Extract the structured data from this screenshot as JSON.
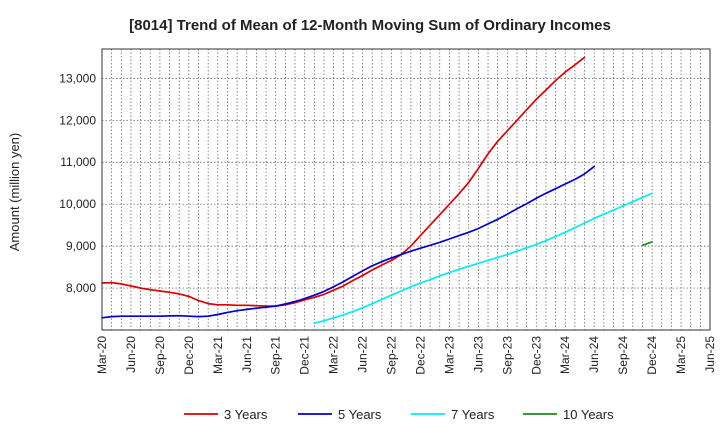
{
  "chart_data": {
    "type": "line",
    "title": "[8014]  Trend of Mean of 12-Month Moving Sum of Ordinary Incomes",
    "xlabel": "",
    "ylabel": "Amount (million yen)",
    "x_ticks": [
      "Mar-20",
      "Jun-20",
      "Sep-20",
      "Dec-20",
      "Mar-21",
      "Jun-21",
      "Sep-21",
      "Dec-21",
      "Mar-22",
      "Jun-22",
      "Sep-22",
      "Dec-22",
      "Mar-23",
      "Jun-23",
      "Sep-23",
      "Dec-23",
      "Mar-24",
      "Jun-24",
      "Sep-24",
      "Dec-24",
      "Mar-25",
      "Jun-25"
    ],
    "y_ticks": [
      8000,
      9000,
      10000,
      11000,
      12000,
      13000
    ],
    "y_tick_labels": [
      "8,000",
      "9,000",
      "10,000",
      "11,000",
      "12,000",
      "13,000"
    ],
    "ylim": [
      7000,
      13700
    ],
    "grid": true,
    "legend_position": "bottom",
    "series": [
      {
        "name": "3 Years",
        "color": "#dd0000",
        "start_index": 0,
        "values": [
          8120,
          8130,
          8100,
          8050,
          8000,
          7960,
          7930,
          7900,
          7860,
          7800,
          7700,
          7630,
          7600,
          7600,
          7590,
          7590,
          7580,
          7570,
          7570,
          7600,
          7650,
          7720,
          7780,
          7850,
          7950,
          8050,
          8180,
          8300,
          8430,
          8550,
          8660,
          8800,
          9000,
          9250,
          9500,
          9750,
          10000,
          10250,
          10520,
          10850,
          11200,
          11500,
          11750,
          12000,
          12250,
          12500,
          12720,
          12950,
          13150,
          13320,
          13500
        ]
      },
      {
        "name": "5 Years",
        "color": "#0000cc",
        "start_index": 0,
        "values": [
          7290,
          7320,
          7330,
          7330,
          7330,
          7330,
          7330,
          7335,
          7340,
          7330,
          7320,
          7330,
          7370,
          7420,
          7460,
          7490,
          7520,
          7545,
          7570,
          7620,
          7680,
          7750,
          7830,
          7920,
          8030,
          8150,
          8280,
          8410,
          8530,
          8630,
          8720,
          8800,
          8880,
          8950,
          9020,
          9090,
          9170,
          9250,
          9330,
          9420,
          9530,
          9640,
          9760,
          9890,
          10010,
          10140,
          10260,
          10370,
          10480,
          10590,
          10720,
          10900
        ]
      },
      {
        "name": "7 Years",
        "color": "#00eeee",
        "start_index": 22,
        "values": [
          7160,
          7220,
          7290,
          7360,
          7440,
          7530,
          7630,
          7730,
          7830,
          7930,
          8030,
          8120,
          8200,
          8290,
          8370,
          8450,
          8520,
          8590,
          8660,
          8730,
          8800,
          8880,
          8960,
          9040,
          9130,
          9230,
          9330,
          9440,
          9550,
          9660,
          9760,
          9860,
          9960,
          10060,
          10160,
          10260
        ]
      },
      {
        "name": "10 Years",
        "color": "#228822",
        "start_index": 56,
        "values": [
          9020,
          9100
        ]
      }
    ]
  }
}
